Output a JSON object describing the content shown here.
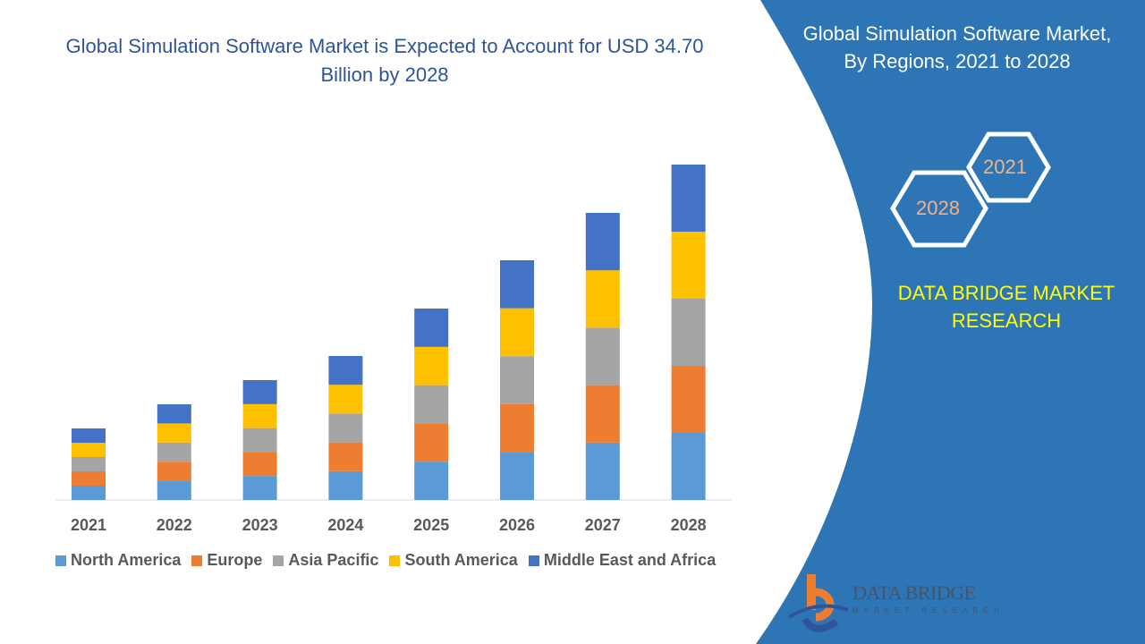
{
  "title": "Global Simulation Software Market is Expected to Account for USD 34.70 Billion by 2028",
  "side_panel": {
    "title_line1": "Global Simulation Software Market,",
    "title_line2": "By Regions, 2021 to 2028",
    "hex_years": [
      "2021",
      "2028"
    ],
    "brand_line1": "DATA BRIDGE MARKET",
    "brand_line2": "RESEARCH",
    "logo_text": "DATA BRIDGE",
    "logo_sub": "MARKET RESEARCH",
    "color": "#2E75B6"
  },
  "chart_data": {
    "type": "bar",
    "stacked": true,
    "title": "Global Simulation Software Market is Expected to Account for USD 34.70 Billion by 2028",
    "xlabel": "",
    "ylabel": "",
    "y_axis_shown": false,
    "grid": false,
    "legend_position": "bottom",
    "categories": [
      "2021",
      "2022",
      "2023",
      "2024",
      "2025",
      "2026",
      "2027",
      "2028"
    ],
    "series": [
      {
        "name": "North America",
        "color": "#5B9BD5",
        "values": [
          16,
          21.4,
          26.8,
          32.2,
          42.8,
          53.6,
          64.2,
          75
        ]
      },
      {
        "name": "Europe",
        "color": "#ED7D31",
        "values": [
          16,
          21.4,
          26.8,
          32.2,
          42.8,
          53.6,
          64.2,
          75
        ]
      },
      {
        "name": "Asia Pacific",
        "color": "#A5A5A5",
        "values": [
          16,
          21.4,
          26.8,
          32.2,
          42.8,
          53.6,
          64.2,
          75
        ]
      },
      {
        "name": "South America",
        "color": "#FFC000",
        "values": [
          16,
          21.4,
          26.8,
          32.2,
          42.8,
          53.6,
          64.2,
          75
        ]
      },
      {
        "name": "Middle East and Africa",
        "color": "#4472C4",
        "values": [
          16,
          21.4,
          26.8,
          32.2,
          42.8,
          53.6,
          64.2,
          75
        ]
      }
    ],
    "note": "relative segment sizes; no value axis printed"
  }
}
